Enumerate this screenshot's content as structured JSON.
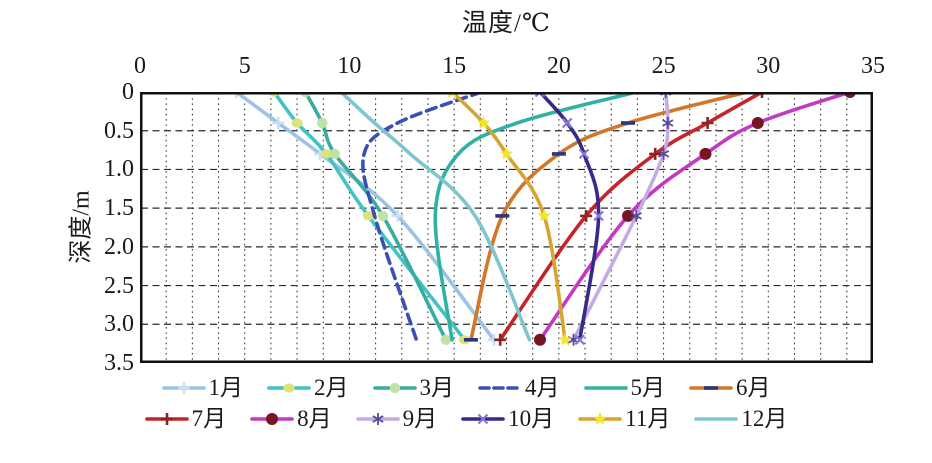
{
  "title": "温度/℃",
  "chart_data": {
    "type": "line",
    "title": "温度/℃",
    "xlabel": "温度/℃",
    "ylabel": "深度/m",
    "x_ticks": [
      0,
      5,
      10,
      15,
      20,
      25,
      30,
      35
    ],
    "y_ticks": [
      "0",
      "0.5",
      "1.0",
      "1.5",
      "2.0",
      "2.5",
      "3.0",
      "3.5"
    ],
    "xlim": [
      0,
      35
    ],
    "ylim": [
      0,
      3.5
    ],
    "y_axis_inverted": true,
    "x_axis_position": "top",
    "grid": {
      "on": true,
      "x_step": 1.25,
      "y_step": 0.5,
      "style": "dashed"
    },
    "depths_m": [
      0,
      0.4,
      0.8,
      1.6,
      3.2
    ],
    "series": [
      {
        "name": "1月",
        "color": "#9CC3E4",
        "marker": "plus",
        "marker_color": "#C9E0F5",
        "dash": null,
        "values": [
          4.6,
          6.6,
          8.6,
          12.3,
          16.9
        ]
      },
      {
        "name": "2月",
        "color": "#43C2C4",
        "marker": "blob",
        "marker_color": "#DDE37B",
        "dash": null,
        "values": [
          6.4,
          7.5,
          8.9,
          10.9,
          15.5
        ]
      },
      {
        "name": "3月",
        "color": "#38ACA0",
        "marker": "circle",
        "marker_color": "#BFE3A6",
        "dash": null,
        "values": [
          7.9,
          8.7,
          9.3,
          11.6,
          14.6
        ]
      },
      {
        "name": "4月",
        "color": "#3C50B4",
        "marker": "none",
        "marker_color": "#3C50B4",
        "dash": "10 6",
        "values": [
          16.3,
          12.3,
          10.7,
          11.2,
          13.2
        ]
      },
      {
        "name": "5月",
        "color": "#30B2A2",
        "marker": "none",
        "marker_color": "#30B2A2",
        "dash": null,
        "values": [
          23.7,
          18.0,
          15.2,
          14.1,
          14.9
        ]
      },
      {
        "name": "6月",
        "color": "#D2772A",
        "marker": "dash",
        "marker_color": "#2D3580",
        "dash": null,
        "values": [
          29.0,
          23.3,
          20.0,
          17.3,
          15.8
        ]
      },
      {
        "name": "7月",
        "color": "#C5242B",
        "marker": "plus",
        "marker_color": "#8C2222",
        "dash": null,
        "values": [
          29.7,
          27.1,
          24.6,
          21.3,
          17.2
        ]
      },
      {
        "name": "8月",
        "color": "#C23AC2",
        "marker": "dot",
        "marker_color": "#771522",
        "dash": null,
        "values": [
          33.9,
          29.5,
          27.0,
          23.3,
          19.1
        ]
      },
      {
        "name": "9月",
        "color": "#C3ABE3",
        "marker": "asterisk",
        "marker_color": "#584A9E",
        "dash": null,
        "values": [
          25.1,
          25.2,
          25.0,
          23.7,
          20.7
        ]
      },
      {
        "name": "10月",
        "color": "#37298A",
        "marker": "x",
        "marker_color": "#8578D6",
        "dash": null,
        "values": [
          19.1,
          20.4,
          21.2,
          21.9,
          21.0
        ]
      },
      {
        "name": "11月",
        "color": "#D7A52F",
        "marker": "star",
        "marker_color": "#F4E32F",
        "dash": null,
        "values": [
          14.9,
          16.4,
          17.5,
          19.3,
          20.3
        ]
      },
      {
        "name": "12月",
        "color": "#7EC6CE",
        "marker": "none",
        "marker_color": "#7EC6CE",
        "dash": null,
        "values": [
          9.6,
          11.2,
          12.9,
          16.0,
          18.6
        ]
      }
    ],
    "legend_position": "bottom",
    "legend_rows": [
      [
        "1月",
        "2月",
        "3月",
        "4月",
        "5月",
        "6月"
      ],
      [
        "7月",
        "8月",
        "9月",
        "10月",
        "11月",
        "12月"
      ]
    ]
  }
}
